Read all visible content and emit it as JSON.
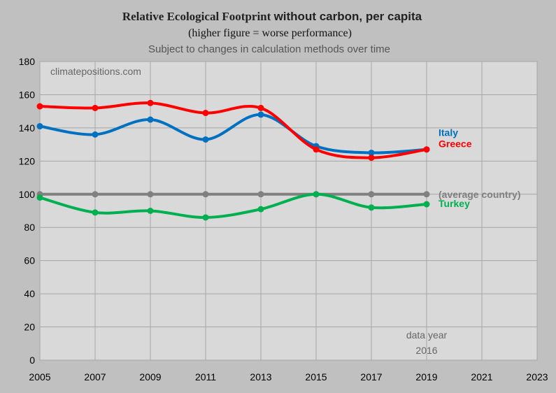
{
  "chart_data": {
    "type": "line",
    "title": "Relative Ecological Footprint without carbon, per capita",
    "title_bold_part": "without carbon, per capita",
    "title_plain_part": "Relative Ecological Footprint",
    "subtitle": "(higher figure = worse performance)",
    "note": "Subject to changes in calculation methods over time",
    "watermark": "climatepositions.com",
    "data_year_label": "data year",
    "data_year_value": "2016",
    "xlim": [
      2005,
      2023
    ],
    "ylim": [
      0,
      180
    ],
    "x_ticks": [
      "2005",
      "2007",
      "2009",
      "2011",
      "2013",
      "2015",
      "2017",
      "2019",
      "2021",
      "2023"
    ],
    "y_ticks": [
      "0",
      "20",
      "40",
      "60",
      "80",
      "100",
      "120",
      "140",
      "160",
      "180"
    ],
    "grid": true,
    "legend": "labels at line ends, right",
    "series": [
      {
        "name": "Italy",
        "color": "#0070c0",
        "x": [
          2005,
          2007,
          2009,
          2011,
          2013,
          2015,
          2017,
          2019
        ],
        "values": [
          141,
          136,
          145,
          133,
          148,
          129,
          125,
          127
        ]
      },
      {
        "name": "Greece",
        "color": "#ff0000",
        "x": [
          2005,
          2007,
          2009,
          2011,
          2013,
          2015,
          2017,
          2019
        ],
        "values": [
          153,
          152,
          155,
          149,
          152,
          127,
          122,
          127
        ]
      },
      {
        "name": "(average country)",
        "color": "#808080",
        "x": [
          2005,
          2007,
          2009,
          2011,
          2013,
          2015,
          2017,
          2019
        ],
        "values": [
          100,
          100,
          100,
          100,
          100,
          100,
          100,
          100
        ]
      },
      {
        "name": "Turkey",
        "color": "#00b050",
        "x": [
          2005,
          2007,
          2009,
          2011,
          2013,
          2015,
          2017,
          2019
        ],
        "values": [
          98,
          89,
          90,
          86,
          91,
          100,
          92,
          94
        ]
      }
    ]
  }
}
